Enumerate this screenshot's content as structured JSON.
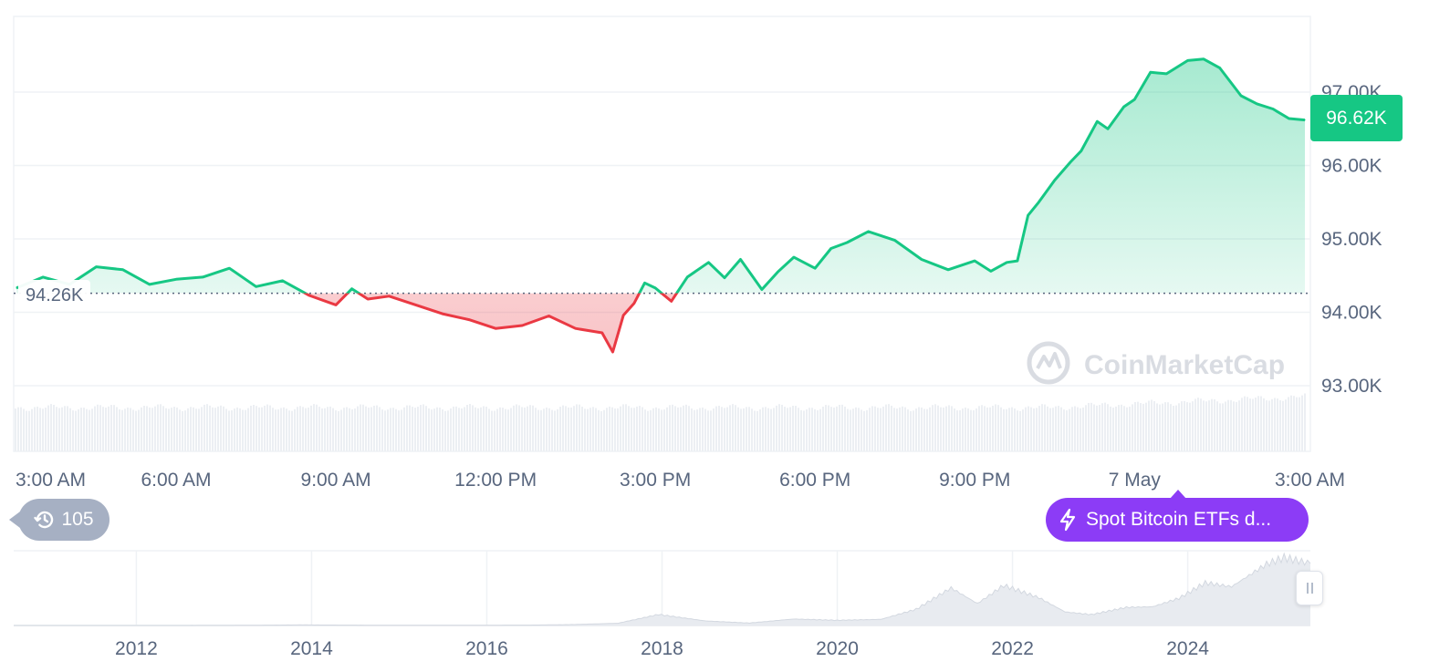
{
  "chart_data": [
    {
      "type": "area",
      "y_axis_labels": [
        "97.00K",
        "96.00K",
        "95.00K",
        "94.00K",
        "93.00K"
      ],
      "y_ticks": [
        97000,
        96000,
        95000,
        94000,
        93000
      ],
      "ylim": [
        92000,
        98000
      ],
      "x_tick_labels": [
        "3:00 AM",
        "6:00 AM",
        "9:00 AM",
        "12:00 PM",
        "3:00 PM",
        "6:00 PM",
        "9:00 PM",
        "7 May",
        "3:00 AM"
      ],
      "x_tick_hours": [
        3,
        6,
        9,
        12,
        15,
        18,
        21,
        24,
        27
      ],
      "xlim_hours": [
        3,
        27.2
      ],
      "baseline": 94260,
      "baseline_label": "94.26K",
      "current_value": 96620,
      "current_label": "96.62K",
      "grid": true,
      "colors": {
        "up": "#16c784",
        "down": "#ea3943",
        "axis_text": "#58667e",
        "grid": "#eff2f5"
      },
      "series": [
        {
          "x_hours": [
            3.0,
            3.5,
            4.0,
            4.5,
            5.0,
            5.5,
            6.0,
            6.5,
            7.0,
            7.5,
            8.0,
            8.5,
            9.0,
            9.3,
            9.6,
            10.0,
            10.5,
            11.0,
            11.5,
            12.0,
            12.5,
            13.0,
            13.5,
            14.0,
            14.2,
            14.4,
            14.6,
            14.8,
            15.0,
            15.3,
            15.6,
            16.0,
            16.3,
            16.6,
            17.0,
            17.3,
            17.6,
            18.0,
            18.3,
            18.6,
            19.0,
            19.5,
            20.0,
            20.5,
            21.0,
            21.3,
            21.6,
            21.8,
            22.0,
            22.2,
            22.5,
            22.8,
            23.0,
            23.3,
            23.5,
            23.8,
            24.0,
            24.3,
            24.6,
            25.0,
            25.3,
            25.6,
            26.0,
            26.3,
            26.6,
            26.9,
            27.2
          ],
          "y": [
            94330,
            94480,
            94380,
            94620,
            94580,
            94380,
            94450,
            94480,
            94600,
            94350,
            94430,
            94230,
            94100,
            94320,
            94180,
            94220,
            94100,
            93980,
            93900,
            93780,
            93820,
            93950,
            93780,
            93720,
            93460,
            93960,
            94120,
            94400,
            94330,
            94150,
            94480,
            94680,
            94470,
            94720,
            94310,
            94550,
            94750,
            94600,
            94870,
            94950,
            95100,
            94980,
            94720,
            94580,
            94700,
            94560,
            94680,
            94700,
            95320,
            95500,
            95800,
            96050,
            96200,
            96600,
            96500,
            96800,
            96900,
            97270,
            97250,
            97430,
            97450,
            97330,
            96950,
            96840,
            96770,
            96640,
            96620
          ]
        }
      ]
    },
    {
      "type": "area",
      "x_tick_labels": [
        "2012",
        "2014",
        "2016",
        "2018",
        "2020",
        "2022",
        "2024"
      ],
      "x_tick_years": [
        2012,
        2014,
        2016,
        2018,
        2020,
        2022,
        2024
      ],
      "xlim_years": [
        2010.6,
        2025.4
      ],
      "ylim": [
        0,
        110000
      ],
      "series": [
        {
          "x_years": [
            2010.6,
            2012.0,
            2013.0,
            2013.9,
            2014.5,
            2015.5,
            2016.5,
            2017.0,
            2017.5,
            2017.96,
            2018.5,
            2019.0,
            2019.5,
            2020.0,
            2020.5,
            2020.9,
            2021.3,
            2021.6,
            2021.9,
            2022.3,
            2022.6,
            2022.9,
            2023.3,
            2023.6,
            2023.9,
            2024.2,
            2024.5,
            2024.9,
            2025.1,
            2025.4
          ],
          "y": [
            0,
            10,
            100,
            900,
            500,
            250,
            600,
            1500,
            3500,
            17000,
            7000,
            3800,
            10000,
            8000,
            9500,
            25000,
            58000,
            34000,
            62000,
            43000,
            21000,
            16800,
            28000,
            29000,
            42000,
            66000,
            60000,
            95000,
            105000,
            96000
          ]
        }
      ]
    }
  ],
  "history_count": "105",
  "event_label": "Spot Bitcoin ETFs d...",
  "watermark": "CoinMarketCap"
}
